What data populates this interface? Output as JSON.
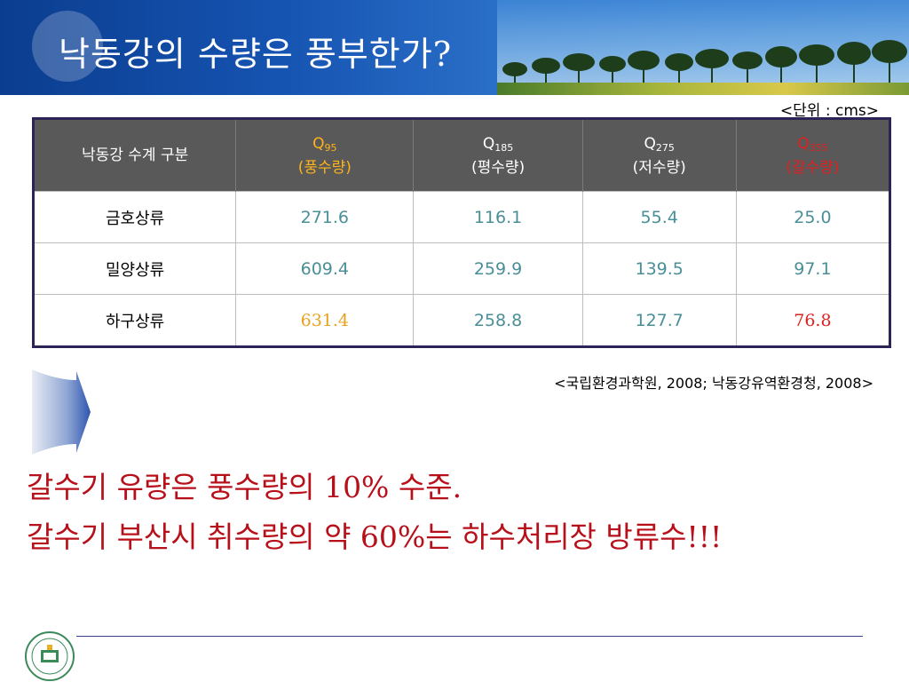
{
  "slide": {
    "title": "낙동강의 수량은 풍부한가?",
    "unit_note": "<단위 : cms>"
  },
  "table": {
    "corner_header": "낙동강 수계 구분",
    "columns": [
      {
        "q": "Q",
        "sub": "95",
        "desc": "(풍수량)",
        "color": "#ffb31a"
      },
      {
        "q": "Q",
        "sub": "185",
        "desc": "(평수량)",
        "color": "#ffffff"
      },
      {
        "q": "Q",
        "sub": "275",
        "desc": "(저수량)",
        "color": "#ffffff"
      },
      {
        "q": "Q",
        "sub": "355",
        "desc": "(갈수량)",
        "color": "#e02020"
      }
    ],
    "rows": [
      {
        "label": "금호상류",
        "values": [
          "271.6",
          "116.1",
          "55.4",
          "25.0"
        ]
      },
      {
        "label": "밀양상류",
        "values": [
          "609.4",
          "259.9",
          "139.5",
          "97.1"
        ]
      },
      {
        "label": "하구상류",
        "values": [
          "631.4",
          "258.8",
          "127.7",
          "76.8"
        ]
      }
    ]
  },
  "source_note": "<국립환경과학원, 2008; 낙동강유역환경청, 2008>",
  "conclusions": [
    "갈수기 유량은 풍수량의 10% 수준.",
    "갈수기 부산시 취수량의 약 60%는 하수처리장 방류수!!!"
  ],
  "icons": {
    "arrow": "right-arrow-icon",
    "logo": "university-emblem-icon"
  },
  "colors": {
    "accent_red": "#b8101a",
    "table_header": "#595959",
    "value_teal": "#4a8f98"
  }
}
